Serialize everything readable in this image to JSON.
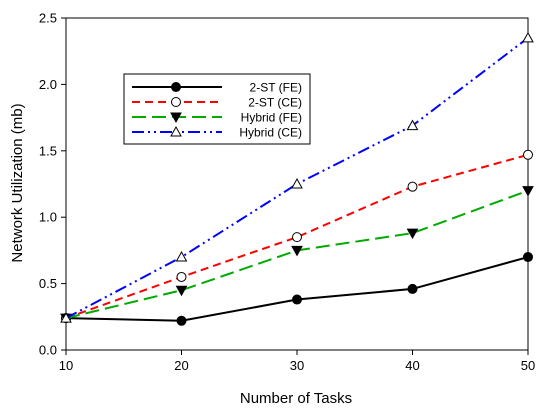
{
  "chart_data": {
    "type": "line",
    "title": "",
    "xlabel": "Number of Tasks",
    "ylabel": "Network Utilization (mb)",
    "xlim": [
      10,
      50
    ],
    "ylim": [
      0.0,
      2.5
    ],
    "x": [
      10,
      20,
      30,
      40,
      50
    ],
    "x_ticks": [
      "10",
      "20",
      "30",
      "40",
      "50"
    ],
    "y_ticks": [
      "0.0",
      "0.5",
      "1.0",
      "1.5",
      "2.0",
      "2.5"
    ],
    "grid": false,
    "legend_position": "upper-left",
    "series": [
      {
        "name": "2-ST (FE)",
        "values": [
          0.24,
          0.22,
          0.38,
          0.46,
          0.7
        ],
        "color": "#000000",
        "dash": "solid",
        "marker": "circle-filled"
      },
      {
        "name": "2-ST (CE)",
        "values": [
          0.24,
          0.55,
          0.85,
          1.23,
          1.47
        ],
        "color": "#ff0000",
        "dash": "dashed",
        "marker": "circle-open"
      },
      {
        "name": "Hybrid (FE)",
        "values": [
          0.24,
          0.45,
          0.75,
          0.88,
          1.2
        ],
        "color": "#00aa00",
        "dash": "long-dash",
        "marker": "triangle-down-filled"
      },
      {
        "name": "Hybrid (CE)",
        "values": [
          0.24,
          0.7,
          1.25,
          1.69,
          2.35
        ],
        "color": "#0000ff",
        "dash": "dash-dot-dot",
        "marker": "triangle-up-open"
      }
    ]
  }
}
